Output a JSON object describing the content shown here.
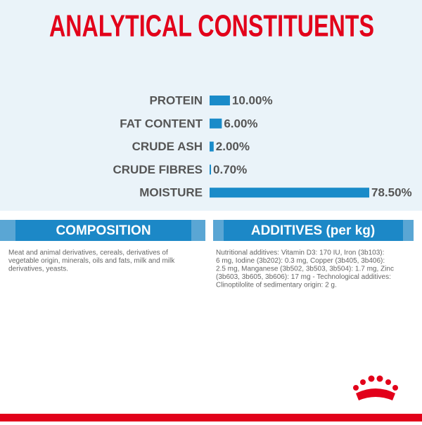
{
  "chart_data": {
    "type": "hbar",
    "title": "ANALYTICAL CONSTITUENTS",
    "categories": [
      "PROTEIN",
      "FAT CONTENT",
      "CRUDE ASH",
      "CRUDE FIBRES",
      "MOISTURE"
    ],
    "values": [
      10,
      6,
      2,
      0.7,
      78.5
    ],
    "value_labels": [
      "10.00%",
      "6.00%",
      "2.00%",
      "0.70%",
      "78.50%"
    ],
    "color": "#1a8bc9"
  },
  "composition": {
    "title": "COMPOSITION",
    "lines": [
      "Meat and animal derivatives, cereals, derivatives of",
      "vegetable origin, minerals, oils and fats, milk and milk",
      "derivatives, yeasts."
    ]
  },
  "additives": {
    "title": "ADDITIVES (per kg)",
    "lines": [
      "Nutritional additives: Vitamin D3: 170 IU, Iron (3b103):",
      "6 mg, Iodine (3b202): 0.3 mg, Copper (3b405, 3b406):",
      "2.5 mg, Manganese (3b502, 3b503, 3b504): 1.7 mg, Zinc",
      "(3b603, 3b605, 3b606): 17 mg - Technological additives:",
      "Clinoptilolite of sedimentary origin: 2 g."
    ]
  }
}
